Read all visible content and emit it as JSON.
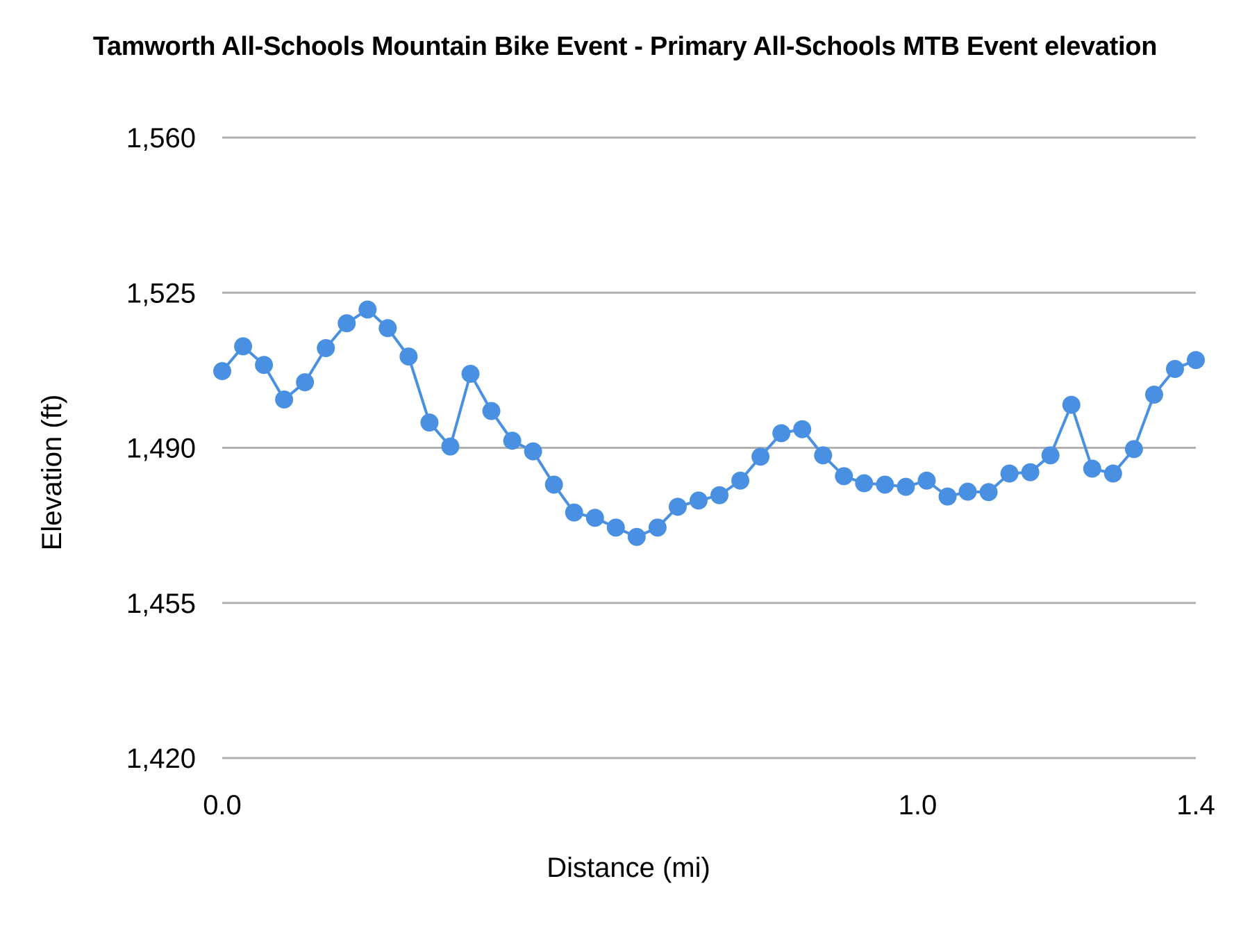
{
  "chart_data": {
    "type": "line",
    "title": "Tamworth All-Schools Mountain Bike Event - Primary All-Schools MTB Event elevation",
    "xlabel": "Distance (mi)",
    "ylabel": "Elevation (ft)",
    "xlim": [
      0.0,
      1.4
    ],
    "ylim": [
      1420,
      1560
    ],
    "x_ticks": [
      "0.0",
      "1.0",
      "1.4"
    ],
    "x_tick_values": [
      0.0,
      1.0,
      1.4
    ],
    "y_ticks": [
      "1,560",
      "1,525",
      "1,490",
      "1,455",
      "1,420"
    ],
    "y_tick_values": [
      1560,
      1525,
      1490,
      1455,
      1420
    ],
    "grid": true,
    "legend": null,
    "series": [
      {
        "name": "Elevation",
        "color": "#4a90e2",
        "x": [
          0.0,
          0.03,
          0.06,
          0.089,
          0.119,
          0.149,
          0.179,
          0.209,
          0.238,
          0.268,
          0.298,
          0.328,
          0.357,
          0.387,
          0.417,
          0.447,
          0.477,
          0.506,
          0.536,
          0.566,
          0.596,
          0.626,
          0.655,
          0.685,
          0.715,
          0.745,
          0.774,
          0.804,
          0.834,
          0.864,
          0.894,
          0.923,
          0.953,
          0.983,
          1.013,
          1.043,
          1.072,
          1.102,
          1.132,
          1.162,
          1.191,
          1.221,
          1.251,
          1.281,
          1.311,
          1.34,
          1.37,
          1.4
        ],
        "values": [
          1507.3,
          1512.9,
          1508.7,
          1500.9,
          1504.8,
          1512.5,
          1518.1,
          1521.2,
          1517.0,
          1510.6,
          1495.7,
          1490.3,
          1506.7,
          1498.3,
          1491.6,
          1489.2,
          1481.7,
          1475.4,
          1474.2,
          1472.0,
          1469.9,
          1472.0,
          1476.7,
          1478.1,
          1479.3,
          1482.6,
          1488.0,
          1493.3,
          1494.2,
          1488.3,
          1483.6,
          1482.0,
          1481.7,
          1481.2,
          1482.6,
          1479.0,
          1480.1,
          1480.0,
          1484.2,
          1484.5,
          1488.3,
          1499.7,
          1485.3,
          1484.2,
          1489.7,
          1502.0,
          1507.8,
          1509.8
        ]
      }
    ]
  },
  "colors": {
    "line": "#4a90e2",
    "gridline": "#b0b0b0",
    "text": "#000000"
  }
}
